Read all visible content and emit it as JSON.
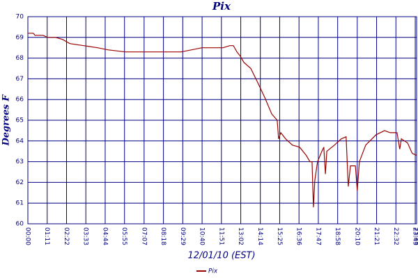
{
  "chart_data": {
    "type": "line",
    "title": "Pix",
    "x_label": "12/01/10 (EST)",
    "y_label": "Degrees F",
    "xlim": [
      0,
      1428
    ],
    "ylim": [
      60,
      70
    ],
    "yticks": [
      60,
      61,
      62,
      63,
      64,
      65,
      66,
      67,
      68,
      69,
      70
    ],
    "xticks": [
      {
        "value": 0,
        "label": "00:00"
      },
      {
        "value": 71,
        "label": "01:11"
      },
      {
        "value": 142,
        "label": "02:22"
      },
      {
        "value": 213,
        "label": "03:33"
      },
      {
        "value": 284,
        "label": "04:44"
      },
      {
        "value": 355,
        "label": "05:55"
      },
      {
        "value": 427,
        "label": "07:07"
      },
      {
        "value": 498,
        "label": "08:18"
      },
      {
        "value": 569,
        "label": "09:29"
      },
      {
        "value": 640,
        "label": "10:40"
      },
      {
        "value": 711,
        "label": "11:51"
      },
      {
        "value": 782,
        "label": "13:02"
      },
      {
        "value": 854,
        "label": "14:14"
      },
      {
        "value": 925,
        "label": "15:25"
      },
      {
        "value": 996,
        "label": "16:36"
      },
      {
        "value": 1067,
        "label": "17:47"
      },
      {
        "value": 1138,
        "label": "18:58"
      },
      {
        "value": 1210,
        "label": "20:10"
      },
      {
        "value": 1281,
        "label": "21:21"
      },
      {
        "value": 1352,
        "label": "22:32"
      },
      {
        "value": 1423,
        "label": "23:43"
      },
      {
        "value": 1428,
        "label": "23:48"
      }
    ],
    "grid": true,
    "x": [
      0,
      20,
      26,
      56,
      72,
      102,
      128,
      154,
      205,
      256,
      294,
      358,
      486,
      563,
      640,
      717,
      742,
      755,
      768,
      780,
      793,
      819,
      845,
      870,
      896,
      916,
      921,
      929,
      947,
      972,
      998,
      1023,
      1036,
      1044,
      1049,
      1054,
      1064,
      1080,
      1087,
      1093,
      1098,
      1126,
      1151,
      1169,
      1177,
      1185,
      1203,
      1210,
      1218,
      1241,
      1279,
      1310,
      1331,
      1356,
      1366,
      1372,
      1395,
      1412,
      1428
    ],
    "series": [
      {
        "name": "Pix",
        "color": "#990000",
        "values": [
          69.2,
          69.2,
          69.1,
          69.1,
          69.0,
          69.0,
          68.9,
          68.7,
          68.6,
          68.5,
          68.4,
          68.3,
          68.3,
          68.3,
          68.5,
          68.5,
          68.6,
          68.6,
          68.3,
          68.1,
          67.8,
          67.5,
          66.8,
          66.1,
          65.3,
          65.0,
          64.1,
          64.4,
          64.1,
          63.8,
          63.7,
          63.3,
          63.0,
          63.0,
          60.8,
          62.1,
          63.0,
          63.5,
          63.7,
          62.4,
          63.5,
          63.8,
          64.1,
          64.2,
          61.8,
          62.8,
          62.8,
          61.6,
          63.0,
          63.8,
          64.3,
          64.5,
          64.4,
          64.4,
          63.6,
          64.1,
          63.9,
          63.4,
          63.3
        ]
      }
    ]
  }
}
